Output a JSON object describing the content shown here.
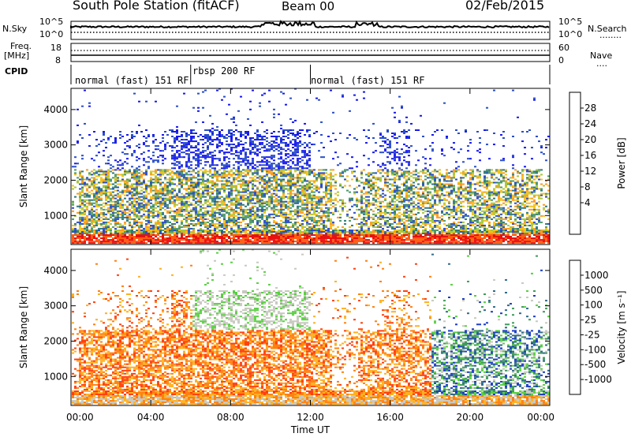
{
  "header": {
    "station": "South Pole Station (fitACF)",
    "beam": "Beam 00",
    "date": "02/Feb/2015"
  },
  "side_labels": {
    "nsky": "N.Sky",
    "nsearch": "N.Search",
    "nsearch_dots": "........",
    "freq": "Freq.",
    "mhz": "[MHz]",
    "nave": "Nave",
    "nave_dots": "....",
    "cpid": "CPID"
  },
  "noise_axis": {
    "left_top": "10^5",
    "left_bottom": "10^0",
    "right_top": "10^5",
    "right_bottom": "10^0"
  },
  "freq_axis": {
    "left_top": "18",
    "left_bottom": "8",
    "right_top": "60",
    "right_bottom": "0"
  },
  "cpid_segments": [
    {
      "label": "normal (fast) 151 RF",
      "start_hour": 0,
      "end_hour": 6
    },
    {
      "label": "rbsp 200 RF",
      "start_hour": 6,
      "end_hour": 12
    },
    {
      "label": "normal (fast) 151 RF",
      "start_hour": 12,
      "end_hour": 24
    }
  ],
  "colorbars": {
    "power": {
      "title": "Power [dB]",
      "ticks": [
        "28",
        "24",
        "20",
        "16",
        "12",
        "8",
        "4"
      ],
      "colors": [
        "#e81010",
        "#ff5a10",
        "#ff9a20",
        "#f2c21a",
        "#a8c83a",
        "#4e9a6a",
        "#2e7a78",
        "#2a4ec8",
        "#1818f0"
      ]
    },
    "velocity": {
      "title": "Velocity [m s⁻¹]",
      "ticks": [
        "1000",
        "500",
        "100",
        "25",
        "-25",
        "-100",
        "-500",
        "-1000"
      ],
      "colors": [
        "#1a3cc8",
        "#2f6a8a",
        "#3f9a5a",
        "#58d040",
        "#c8c8c0",
        "#ffb020",
        "#ff8010",
        "#ff4010",
        "#e01010"
      ]
    }
  },
  "chart_data": [
    {
      "type": "heatmap",
      "quantity": "Power [dB]",
      "xlabel": "",
      "ylabel": "Slant Range [km]",
      "x_ticks": [
        "00:00",
        "04:00",
        "08:00",
        "12:00",
        "16:00",
        "20:00",
        "00:00"
      ],
      "x_range_hours": [
        0,
        24
      ],
      "y_ticks": [
        1000,
        2000,
        3000,
        4000
      ],
      "ylim": [
        180,
        4600
      ],
      "zlim": [
        0,
        30
      ]
    },
    {
      "type": "heatmap",
      "quantity": "Velocity [m s⁻¹]",
      "xlabel": "Time UT",
      "ylabel": "Slant Range [km]",
      "x_ticks": [
        "00:00",
        "04:00",
        "08:00",
        "12:00",
        "16:00",
        "20:00",
        "00:00"
      ],
      "x_range_hours": [
        0,
        24
      ],
      "y_ticks": [
        1000,
        2000,
        3000,
        4000
      ],
      "ylim": [
        180,
        4600
      ],
      "zlim": [
        -1000,
        1000
      ]
    }
  ]
}
